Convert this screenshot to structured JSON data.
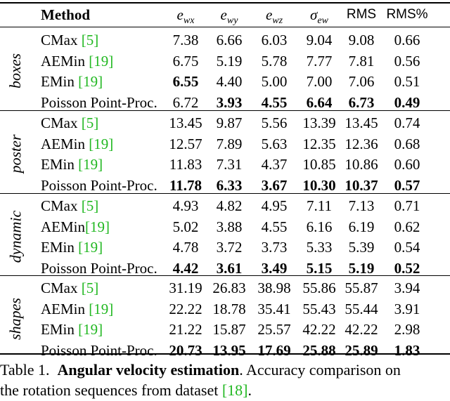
{
  "header": {
    "method": "Method",
    "col1": "e",
    "col1_sub": "wx",
    "col2": "e",
    "col2_sub": "wy",
    "col3": "e",
    "col3_sub": "wz",
    "col4": "σ",
    "col4_sub": "ew",
    "col5": "RMS",
    "col6": "RMS%"
  },
  "groups": [
    {
      "label": "boxes",
      "rows": [
        {
          "name": "CMax ",
          "ref": "[5]",
          "vals": [
            "7.38",
            "6.66",
            "6.03",
            "9.04",
            "9.08",
            "0.66"
          ],
          "bold": [
            false,
            false,
            false,
            false,
            false,
            false
          ]
        },
        {
          "name": "AEMin ",
          "ref": "[19]",
          "vals": [
            "6.75",
            "5.19",
            "5.78",
            "7.77",
            "7.81",
            "0.56"
          ],
          "bold": [
            false,
            false,
            false,
            false,
            false,
            false
          ]
        },
        {
          "name": "EMin ",
          "ref": "[19]",
          "vals": [
            "6.55",
            "4.40",
            "5.00",
            "7.00",
            "7.06",
            "0.51"
          ],
          "bold": [
            true,
            false,
            false,
            false,
            false,
            false
          ]
        },
        {
          "name": "Poisson Point-Proc.",
          "ref": "",
          "vals": [
            "6.72",
            "3.93",
            "4.55",
            "6.64",
            "6.73",
            "0.49"
          ],
          "bold": [
            false,
            true,
            true,
            true,
            true,
            true
          ]
        }
      ]
    },
    {
      "label": "poster",
      "rows": [
        {
          "name": "CMax ",
          "ref": "[5]",
          "vals": [
            "13.45",
            "9.87",
            "5.56",
            "13.39",
            "13.45",
            "0.74"
          ],
          "bold": [
            false,
            false,
            false,
            false,
            false,
            false
          ]
        },
        {
          "name": "AEMin ",
          "ref": "[19]",
          "vals": [
            "12.57",
            "7.89",
            "5.63",
            "12.35",
            "12.36",
            "0.68"
          ],
          "bold": [
            false,
            false,
            false,
            false,
            false,
            false
          ]
        },
        {
          "name": "EMin ",
          "ref": "[19]",
          "vals": [
            "11.83",
            "7.31",
            "4.37",
            "10.85",
            "10.86",
            "0.60"
          ],
          "bold": [
            false,
            false,
            false,
            false,
            false,
            false
          ]
        },
        {
          "name": "Poisson Point-Proc.",
          "ref": "",
          "vals": [
            "11.78",
            "6.33",
            "3.67",
            "10.30",
            "10.37",
            "0.57"
          ],
          "bold": [
            true,
            true,
            true,
            true,
            true,
            true
          ]
        }
      ]
    },
    {
      "label": "dynamic",
      "rows": [
        {
          "name": "CMax ",
          "ref": "[5]",
          "vals": [
            "4.93",
            "4.82",
            "4.95",
            "7.11",
            "7.13",
            "0.71"
          ],
          "bold": [
            false,
            false,
            false,
            false,
            false,
            false
          ]
        },
        {
          "name": "AEMin",
          "ref": "[19]",
          "vals": [
            "5.02",
            "3.88",
            "4.55",
            "6.16",
            "6.19",
            "0.62"
          ],
          "bold": [
            false,
            false,
            false,
            false,
            false,
            false
          ]
        },
        {
          "name": "EMin ",
          "ref": "[19]",
          "vals": [
            "4.78",
            "3.72",
            "3.73",
            "5.33",
            "5.39",
            "0.54"
          ],
          "bold": [
            false,
            false,
            false,
            false,
            false,
            false
          ]
        },
        {
          "name": "Poisson Point-Proc.",
          "ref": "",
          "vals": [
            "4.42",
            "3.61",
            "3.49",
            "5.15",
            "5.19",
            "0.52"
          ],
          "bold": [
            true,
            true,
            true,
            true,
            true,
            true
          ]
        }
      ]
    },
    {
      "label": "shapes",
      "rows": [
        {
          "name": "CMax ",
          "ref": "[5]",
          "vals": [
            "31.19",
            "26.83",
            "38.98",
            "55.86",
            "55.87",
            "3.94"
          ],
          "bold": [
            false,
            false,
            false,
            false,
            false,
            false
          ]
        },
        {
          "name": "AEMin ",
          "ref": "[19]",
          "vals": [
            "22.22",
            "18.78",
            "35.41",
            "55.43",
            "55.44",
            "3.91"
          ],
          "bold": [
            false,
            false,
            false,
            false,
            false,
            false
          ]
        },
        {
          "name": "EMin ",
          "ref": "[19]",
          "vals": [
            "21.22",
            "15.87",
            "25.57",
            "42.22",
            "42.22",
            "2.98"
          ],
          "bold": [
            false,
            false,
            false,
            false,
            false,
            false
          ]
        },
        {
          "name": "Poisson Point-Proc.",
          "ref": "",
          "vals": [
            "20.73",
            "13.95",
            "17.69",
            "25.88",
            "25.89",
            "1.83"
          ],
          "bold": [
            true,
            true,
            true,
            true,
            true,
            true
          ]
        }
      ]
    }
  ],
  "caption": {
    "prefix": "Table 1.",
    "title": "Angular velocity estimation",
    "line1_rest": ". Accuracy comparison on",
    "line2_start": "the rotation sequences from dataset ",
    "ref": "[18]",
    "line2_end": "."
  },
  "colors": {
    "citation": "#22b822"
  }
}
